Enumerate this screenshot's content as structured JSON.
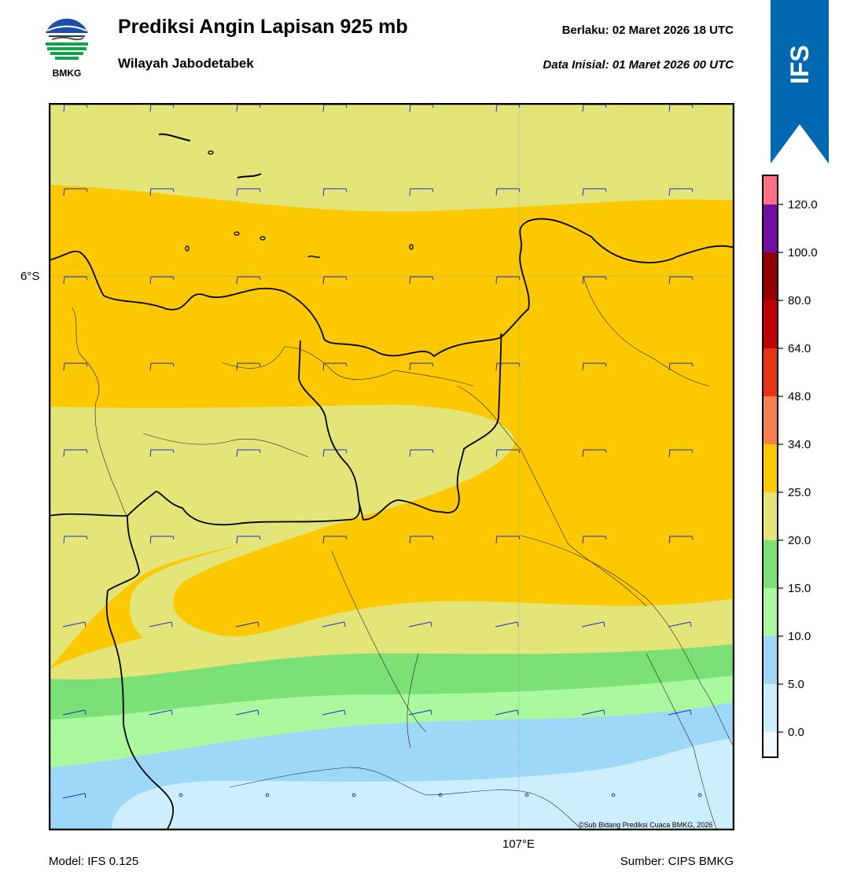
{
  "header": {
    "title": "Prediksi Angin Lapisan 925 mb",
    "subtitle": "Wilayah Jabodetabek",
    "valid_label": "Berlaku:  02 Maret 2026 18 UTC",
    "init_label": "Data Inisial:  01 Maret 2026 00 UTC",
    "logo_text": "BMKG",
    "badge_text": "IFS"
  },
  "footer": {
    "model": "Model: IFS 0.125",
    "source": "Sumber: CIPS BMKG",
    "copyright": "©Sub Bidang Prediksi Cuaca BMKG, 2026"
  },
  "axes": {
    "lat_tick": "6°S",
    "lon_tick": "107°E"
  },
  "colors": {
    "brand_blue": "#0068b0",
    "barb": "#1a2fd0"
  },
  "chart_data": {
    "type": "heatmap",
    "variable": "wind speed, 925 mb",
    "title": "Prediksi Angin Lapisan 925 mb",
    "region": "Wilayah Jabodetabek",
    "x_tick_labels": [
      "107°E"
    ],
    "y_tick_labels": [
      "6°S"
    ],
    "colorbar": {
      "ticks": [
        "0.0",
        "5.0",
        "10.0",
        "15.0",
        "20.0",
        "25.0",
        "34.0",
        "48.0",
        "64.0",
        "80.0",
        "100.0",
        "120.0"
      ],
      "levels": [
        0,
        5,
        10,
        15,
        20,
        25,
        34,
        48,
        64,
        80,
        100,
        120
      ],
      "colors": [
        "#f4fbff",
        "#cdeffd",
        "#9dd8f9",
        "#aaf99e",
        "#7be076",
        "#e4e578",
        "#fcc800",
        "#f68050",
        "#e33416",
        "#c00000",
        "#920000",
        "#720fa5",
        "#ff6f86"
      ]
    },
    "bands_north_to_south": [
      {
        "range": [
          20,
          25
        ],
        "color": "#e4e578"
      },
      {
        "range": [
          25,
          34
        ],
        "color": "#fcc800"
      },
      {
        "range": [
          20,
          25
        ],
        "color": "#e4e578"
      },
      {
        "range": [
          25,
          34
        ],
        "color": "#fcc800"
      },
      {
        "range": [
          20,
          25
        ],
        "color": "#e4e578"
      },
      {
        "range": [
          15,
          20
        ],
        "color": "#7be076"
      },
      {
        "range": [
          10,
          15
        ],
        "color": "#aaf99e"
      },
      {
        "range": [
          5,
          10
        ],
        "color": "#9dd8f9"
      },
      {
        "range": [
          0,
          5
        ],
        "color": "#cdeffd"
      }
    ],
    "wind_barbs": "easterly/northeasterly across grid, calm near southern edge"
  }
}
